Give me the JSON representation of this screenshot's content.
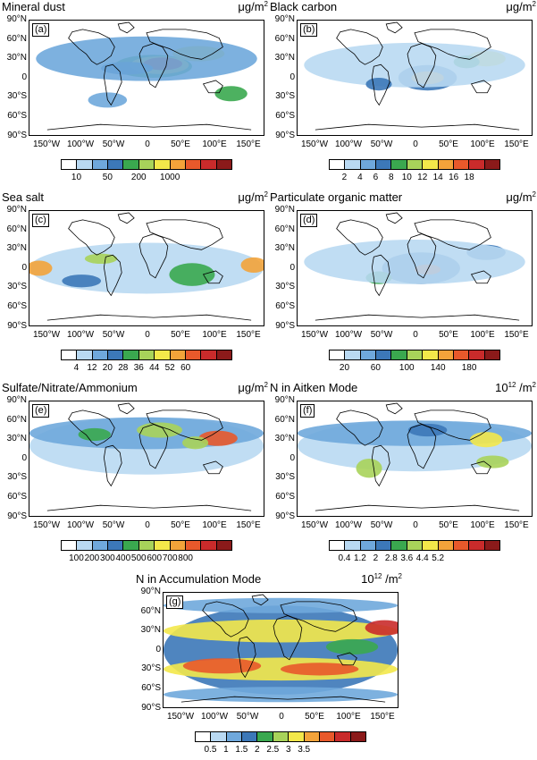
{
  "lat_ticks": [
    "90°S",
    "60°S",
    "30°S",
    "0",
    "30°N",
    "60°N",
    "90°N"
  ],
  "lon_ticks": [
    "150°W",
    "100°W",
    "50°W",
    "0",
    "50°E",
    "100°E",
    "150°E"
  ],
  "chart_data": [
    {
      "type": "heatmap",
      "id": "a",
      "label": "(a)",
      "title": "Mineral dust",
      "unit": "μg/m",
      "unit_sup": "2",
      "colors": [
        "#ffffff",
        "#b9d9f2",
        "#6fa8dc",
        "#3c78b8",
        "#3aa84f",
        "#a8d35a",
        "#f3e84a",
        "#f3a33a",
        "#e8592b",
        "#c92b2b",
        "#8b1a1a"
      ],
      "level_labels": [
        "10",
        "50",
        "200",
        "1000"
      ],
      "level_label_positions": [
        1,
        3,
        5,
        7
      ],
      "blobs": [
        {
          "lon": 10,
          "lat": 18,
          "rx": 60,
          "ry": 18,
          "c": 4
        },
        {
          "lon": 20,
          "lat": 20,
          "rx": 45,
          "ry": 14,
          "c": 6
        },
        {
          "lon": 25,
          "lat": 22,
          "rx": 30,
          "ry": 10,
          "c": 9
        },
        {
          "lon": 80,
          "lat": 38,
          "rx": 40,
          "ry": 12,
          "c": 6
        },
        {
          "lon": -30,
          "lat": 15,
          "rx": 40,
          "ry": 10,
          "c": 3
        },
        {
          "lon": 130,
          "lat": -25,
          "rx": 25,
          "ry": 12,
          "c": 4
        },
        {
          "lon": 0,
          "lat": 30,
          "rx": 170,
          "ry": 35,
          "c": 2
        },
        {
          "lon": -60,
          "lat": -35,
          "rx": 30,
          "ry": 12,
          "c": 2
        }
      ]
    },
    {
      "type": "heatmap",
      "id": "b",
      "label": "(b)",
      "title": "Black carbon",
      "unit": "μg/m",
      "unit_sup": "2",
      "colors": [
        "#ffffff",
        "#b9d9f2",
        "#6fa8dc",
        "#3c78b8",
        "#3aa84f",
        "#a8d35a",
        "#f3e84a",
        "#f3a33a",
        "#e8592b",
        "#c92b2b",
        "#8b1a1a"
      ],
      "level_labels": [
        "2",
        "4",
        "6",
        "8",
        "10",
        "12",
        "14",
        "16",
        "18"
      ],
      "level_label_positions": [
        1,
        2,
        3,
        4,
        5,
        6,
        7,
        8,
        9
      ],
      "blobs": [
        {
          "lon": 20,
          "lat": 0,
          "rx": 45,
          "ry": 20,
          "c": 3
        },
        {
          "lon": 20,
          "lat": 0,
          "rx": 25,
          "ry": 10,
          "c": 7
        },
        {
          "lon": 110,
          "lat": 30,
          "rx": 30,
          "ry": 12,
          "c": 6
        },
        {
          "lon": 80,
          "lat": 25,
          "rx": 20,
          "ry": 10,
          "c": 4
        },
        {
          "lon": 0,
          "lat": 20,
          "rx": 170,
          "ry": 35,
          "c": 1
        },
        {
          "lon": -55,
          "lat": -10,
          "rx": 20,
          "ry": 10,
          "c": 3
        }
      ]
    },
    {
      "type": "heatmap",
      "id": "c",
      "label": "(c)",
      "title": "Sea salt",
      "unit": "μg/m",
      "unit_sup": "2",
      "colors": [
        "#ffffff",
        "#b9d9f2",
        "#6fa8dc",
        "#3c78b8",
        "#3aa84f",
        "#a8d35a",
        "#f3e84a",
        "#f3a33a",
        "#e8592b",
        "#c92b2b",
        "#8b1a1a"
      ],
      "level_labels": [
        "4",
        "12",
        "20",
        "28",
        "36",
        "44",
        "52",
        "60"
      ],
      "level_label_positions": [
        1,
        2,
        3,
        4,
        5,
        6,
        7,
        8
      ],
      "blobs": [
        {
          "lon": 0,
          "lat": 0,
          "rx": 180,
          "ry": 40,
          "c": 1
        },
        {
          "lon": -165,
          "lat": 0,
          "rx": 20,
          "ry": 12,
          "c": 7
        },
        {
          "lon": 165,
          "lat": 5,
          "rx": 20,
          "ry": 12,
          "c": 7
        },
        {
          "lon": 70,
          "lat": -10,
          "rx": 35,
          "ry": 18,
          "c": 4
        },
        {
          "lon": -70,
          "lat": 15,
          "rx": 25,
          "ry": 8,
          "c": 5
        },
        {
          "lon": -100,
          "lat": -20,
          "rx": 30,
          "ry": 10,
          "c": 3
        }
      ]
    },
    {
      "type": "heatmap",
      "id": "d",
      "label": "(d)",
      "title": "Particulate organic matter",
      "unit": "μg/m",
      "unit_sup": "2",
      "colors": [
        "#ffffff",
        "#b9d9f2",
        "#6fa8dc",
        "#3c78b8",
        "#3aa84f",
        "#a8d35a",
        "#f3e84a",
        "#f3a33a",
        "#e8592b",
        "#c92b2b",
        "#8b1a1a"
      ],
      "level_labels": [
        "20",
        "60",
        "100",
        "140",
        "180"
      ],
      "level_label_positions": [
        1,
        3,
        5,
        7,
        9
      ],
      "blobs": [
        {
          "lon": 10,
          "lat": 0,
          "rx": 60,
          "ry": 25,
          "c": 3
        },
        {
          "lon": 20,
          "lat": -2,
          "rx": 20,
          "ry": 8,
          "c": 8
        },
        {
          "lon": -55,
          "lat": -15,
          "rx": 20,
          "ry": 10,
          "c": 4
        },
        {
          "lon": 110,
          "lat": 25,
          "rx": 30,
          "ry": 12,
          "c": 3
        },
        {
          "lon": 0,
          "lat": 10,
          "rx": 170,
          "ry": 35,
          "c": 1
        }
      ]
    },
    {
      "type": "heatmap",
      "id": "e",
      "label": "(e)",
      "title": "Sulfate/Nitrate/Ammonium",
      "unit": "μg/m",
      "unit_sup": "2",
      "colors": [
        "#ffffff",
        "#b9d9f2",
        "#6fa8dc",
        "#3c78b8",
        "#3aa84f",
        "#a8d35a",
        "#f3e84a",
        "#f3a33a",
        "#e8592b",
        "#c92b2b",
        "#8b1a1a"
      ],
      "level_labels": [
        "100",
        "200",
        "300",
        "400",
        "500",
        "600",
        "700",
        "800"
      ],
      "level_label_positions": [
        1,
        2,
        3,
        4,
        5,
        6,
        7,
        8
      ],
      "blobs": [
        {
          "lon": 0,
          "lat": 20,
          "rx": 180,
          "ry": 45,
          "c": 1
        },
        {
          "lon": 0,
          "lat": 40,
          "rx": 180,
          "ry": 25,
          "c": 2
        },
        {
          "lon": 110,
          "lat": 32,
          "rx": 30,
          "ry": 12,
          "c": 8
        },
        {
          "lon": 20,
          "lat": 45,
          "rx": 35,
          "ry": 12,
          "c": 5
        },
        {
          "lon": -80,
          "lat": 38,
          "rx": 25,
          "ry": 10,
          "c": 4
        },
        {
          "lon": 75,
          "lat": 25,
          "rx": 20,
          "ry": 10,
          "c": 5
        }
      ]
    },
    {
      "type": "heatmap",
      "id": "f",
      "label": "(f)",
      "title": "N in Aitken Mode",
      "unit": "10",
      "unit_sup": "12",
      "unit_suffix": " /m",
      "unit_sup2": "2",
      "colors": [
        "#ffffff",
        "#b9d9f2",
        "#6fa8dc",
        "#3c78b8",
        "#3aa84f",
        "#a8d35a",
        "#f3e84a",
        "#f3a33a",
        "#e8592b",
        "#c92b2b",
        "#8b1a1a"
      ],
      "level_labels": [
        "0.4",
        "1.2",
        "2",
        "2.8",
        "3.6",
        "4.4",
        "5.2"
      ],
      "level_label_positions": [
        1,
        2,
        3,
        4,
        5,
        6,
        7
      ],
      "blobs": [
        {
          "lon": 0,
          "lat": 20,
          "rx": 180,
          "ry": 40,
          "c": 1
        },
        {
          "lon": 0,
          "lat": 40,
          "rx": 180,
          "ry": 20,
          "c": 2
        },
        {
          "lon": -70,
          "lat": -15,
          "rx": 20,
          "ry": 15,
          "c": 5
        },
        {
          "lon": 110,
          "lat": 30,
          "rx": 25,
          "ry": 12,
          "c": 6
        },
        {
          "lon": 120,
          "lat": -5,
          "rx": 25,
          "ry": 10,
          "c": 5
        },
        {
          "lon": 20,
          "lat": 45,
          "rx": 30,
          "ry": 10,
          "c": 3
        }
      ]
    },
    {
      "type": "heatmap",
      "id": "g",
      "label": "(g)",
      "title": "N in Accumulation Mode",
      "unit": "10",
      "unit_sup": "12",
      "unit_suffix": " /m",
      "unit_sup2": "2",
      "colors": [
        "#ffffff",
        "#b9d9f2",
        "#6fa8dc",
        "#3c78b8",
        "#3aa84f",
        "#a8d35a",
        "#f3e84a",
        "#f3a33a",
        "#e8592b",
        "#c92b2b",
        "#8b1a1a"
      ],
      "level_labels": [
        "0.5",
        "1",
        "1.5",
        "2",
        "2.5",
        "3",
        "3.5"
      ],
      "level_label_positions": [
        1,
        2,
        3,
        4,
        5,
        6,
        7
      ],
      "blobs": [
        {
          "lon": 0,
          "lat": 0,
          "rx": 180,
          "ry": 70,
          "c": 3
        },
        {
          "lon": 0,
          "lat": 30,
          "rx": 180,
          "ry": 18,
          "c": 6
        },
        {
          "lon": 0,
          "lat": -30,
          "rx": 180,
          "ry": 18,
          "c": 6
        },
        {
          "lon": -90,
          "lat": -25,
          "rx": 60,
          "ry": 12,
          "c": 8
        },
        {
          "lon": 60,
          "lat": -30,
          "rx": 60,
          "ry": 10,
          "c": 8
        },
        {
          "lon": 160,
          "lat": 35,
          "rx": 30,
          "ry": 12,
          "c": 9
        },
        {
          "lon": 110,
          "lat": 5,
          "rx": 40,
          "ry": 12,
          "c": 4
        },
        {
          "lon": 0,
          "lat": 70,
          "rx": 180,
          "ry": 12,
          "c": 2
        },
        {
          "lon": 0,
          "lat": -70,
          "rx": 180,
          "ry": 12,
          "c": 2
        }
      ]
    }
  ]
}
